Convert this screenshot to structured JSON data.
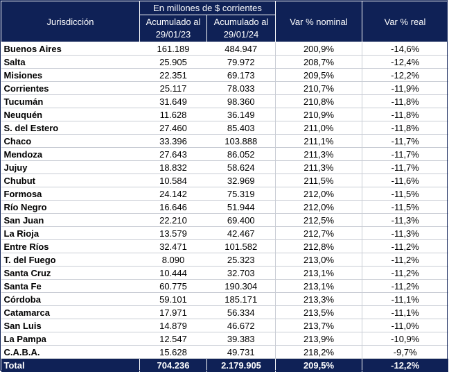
{
  "table": {
    "header": {
      "col_jurisdiccion": "Jurisdicción",
      "group": "En millones de $ corrientes",
      "col_2023": "Acumulado al 29/01/23",
      "col_2024": "Acumulado al 29/01/24",
      "col_var_nominal": "Var % nominal",
      "col_var_real": "Var % real"
    },
    "rows": [
      {
        "jurisdiccion": "Buenos Aires",
        "acum_2023": "161.189",
        "acum_2024": "484.947",
        "var_nominal": "200,9%",
        "var_real": "-14,6%"
      },
      {
        "jurisdiccion": "Salta",
        "acum_2023": "25.905",
        "acum_2024": "79.972",
        "var_nominal": "208,7%",
        "var_real": "-12,4%"
      },
      {
        "jurisdiccion": "Misiones",
        "acum_2023": "22.351",
        "acum_2024": "69.173",
        "var_nominal": "209,5%",
        "var_real": "-12,2%"
      },
      {
        "jurisdiccion": "Corrientes",
        "acum_2023": "25.117",
        "acum_2024": "78.033",
        "var_nominal": "210,7%",
        "var_real": "-11,9%"
      },
      {
        "jurisdiccion": "Tucumán",
        "acum_2023": "31.649",
        "acum_2024": "98.360",
        "var_nominal": "210,8%",
        "var_real": "-11,8%"
      },
      {
        "jurisdiccion": "Neuquén",
        "acum_2023": "11.628",
        "acum_2024": "36.149",
        "var_nominal": "210,9%",
        "var_real": "-11,8%"
      },
      {
        "jurisdiccion": "S. del Estero",
        "acum_2023": "27.460",
        "acum_2024": "85.403",
        "var_nominal": "211,0%",
        "var_real": "-11,8%"
      },
      {
        "jurisdiccion": "Chaco",
        "acum_2023": "33.396",
        "acum_2024": "103.888",
        "var_nominal": "211,1%",
        "var_real": "-11,7%"
      },
      {
        "jurisdiccion": "Mendoza",
        "acum_2023": "27.643",
        "acum_2024": "86.052",
        "var_nominal": "211,3%",
        "var_real": "-11,7%"
      },
      {
        "jurisdiccion": "Jujuy",
        "acum_2023": "18.832",
        "acum_2024": "58.624",
        "var_nominal": "211,3%",
        "var_real": "-11,7%"
      },
      {
        "jurisdiccion": "Chubut",
        "acum_2023": "10.584",
        "acum_2024": "32.969",
        "var_nominal": "211,5%",
        "var_real": "-11,6%"
      },
      {
        "jurisdiccion": "Formosa",
        "acum_2023": "24.142",
        "acum_2024": "75.319",
        "var_nominal": "212,0%",
        "var_real": "-11,5%"
      },
      {
        "jurisdiccion": "Río Negro",
        "acum_2023": "16.646",
        "acum_2024": "51.944",
        "var_nominal": "212,0%",
        "var_real": "-11,5%"
      },
      {
        "jurisdiccion": "San Juan",
        "acum_2023": "22.210",
        "acum_2024": "69.400",
        "var_nominal": "212,5%",
        "var_real": "-11,3%"
      },
      {
        "jurisdiccion": "La Rioja",
        "acum_2023": "13.579",
        "acum_2024": "42.467",
        "var_nominal": "212,7%",
        "var_real": "-11,3%"
      },
      {
        "jurisdiccion": "Entre Ríos",
        "acum_2023": "32.471",
        "acum_2024": "101.582",
        "var_nominal": "212,8%",
        "var_real": "-11,2%"
      },
      {
        "jurisdiccion": "T. del Fuego",
        "acum_2023": "8.090",
        "acum_2024": "25.323",
        "var_nominal": "213,0%",
        "var_real": "-11,2%"
      },
      {
        "jurisdiccion": "Santa Cruz",
        "acum_2023": "10.444",
        "acum_2024": "32.703",
        "var_nominal": "213,1%",
        "var_real": "-11,2%"
      },
      {
        "jurisdiccion": "Santa Fe",
        "acum_2023": "60.775",
        "acum_2024": "190.304",
        "var_nominal": "213,1%",
        "var_real": "-11,2%"
      },
      {
        "jurisdiccion": "Córdoba",
        "acum_2023": "59.101",
        "acum_2024": "185.171",
        "var_nominal": "213,3%",
        "var_real": "-11,1%"
      },
      {
        "jurisdiccion": "Catamarca",
        "acum_2023": "17.971",
        "acum_2024": "56.334",
        "var_nominal": "213,5%",
        "var_real": "-11,1%"
      },
      {
        "jurisdiccion": "San Luis",
        "acum_2023": "14.879",
        "acum_2024": "46.672",
        "var_nominal": "213,7%",
        "var_real": "-11,0%"
      },
      {
        "jurisdiccion": "La Pampa",
        "acum_2023": "12.547",
        "acum_2024": "39.383",
        "var_nominal": "213,9%",
        "var_real": "-10,9%"
      },
      {
        "jurisdiccion": "C.A.B.A.",
        "acum_2023": "15.628",
        "acum_2024": "49.731",
        "var_nominal": "218,2%",
        "var_real": "-9,7%"
      }
    ],
    "total": {
      "jurisdiccion": "Total",
      "acum_2023": "704.236",
      "acum_2024": "2.179.905",
      "var_nominal": "209,5%",
      "var_real": "-12,2%"
    }
  },
  "colors": {
    "header_bg": "#0f2156",
    "header_text": "#ffffff",
    "row_border": "#c8ccd4"
  }
}
